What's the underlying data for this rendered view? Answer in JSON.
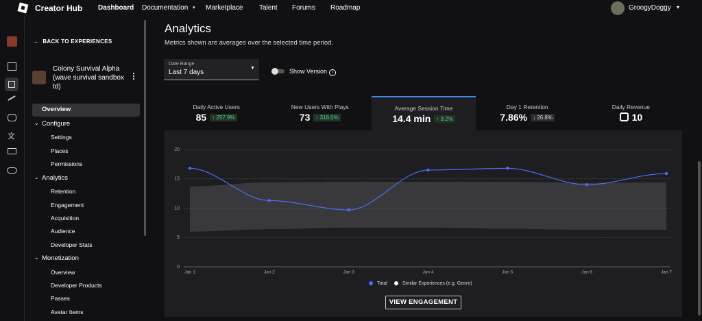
{
  "nav": {
    "brand": "Creator Hub",
    "links": [
      "Dashboard",
      "Documentation",
      "Marketplace",
      "Talent",
      "Forums",
      "Roadmap"
    ],
    "user": "GroogyDoggy"
  },
  "sidebar": {
    "back": "BACK TO EXPERIENCES",
    "experience": "Colony Survival Alpha (wave survival sandbox td)",
    "items": [
      {
        "label": "Overview"
      },
      {
        "label": "Configure",
        "children": [
          "Settings",
          "Places",
          "Permissions"
        ]
      },
      {
        "label": "Analytics",
        "children": [
          "Retention",
          "Engagement",
          "Acquisition",
          "Audience",
          "Developer Stats"
        ]
      },
      {
        "label": "Monetization",
        "children": [
          "Overview",
          "Developer Products",
          "Passes",
          "Avatar Items"
        ]
      }
    ]
  },
  "header": {
    "title": "Analytics",
    "subtitle": "Metrics shown are averages over the selected time period.",
    "date_range_label": "Date Range",
    "date_range_value": "Last 7 days",
    "toggle_label": "Show Version"
  },
  "metrics": [
    {
      "label": "Daily Active Users",
      "value": "85",
      "change": "257.9%"
    },
    {
      "label": "New Users With Plays",
      "value": "73",
      "change": "318.0%"
    },
    {
      "label": "Average Session Time",
      "value": "14.4 min",
      "change": "3.2%"
    },
    {
      "label": "Day 1 Retention",
      "value": "7.86%",
      "change": "26.8%"
    },
    {
      "label": "Daily Revenue",
      "value": "10"
    }
  ],
  "chart_data": {
    "type": "line",
    "categories": [
      "Jan 1",
      "Jan 2",
      "Jan 3",
      "Jan 4",
      "Jan 5",
      "Jan 6",
      "Jan 7"
    ],
    "ylim": [
      0,
      20
    ],
    "yticks": [
      0,
      5,
      10,
      15,
      20
    ],
    "grid": true,
    "series": [
      {
        "name": "Total",
        "color": "#4c6ef5",
        "values": [
          16.8,
          11.3,
          9.7,
          16.5,
          16.8,
          14.0,
          15.9
        ]
      },
      {
        "name": "Similar Experiences (e.g. Genre)",
        "color": "#ffffff",
        "low": [
          6.0,
          6.4,
          6.7,
          6.7,
          6.5,
          6.3,
          6.3
        ],
        "high": [
          13.7,
          14.4,
          14.5,
          14.5,
          14.5,
          14.3,
          14.4
        ]
      }
    ]
  },
  "button": "VIEW ENGAGEMENT"
}
